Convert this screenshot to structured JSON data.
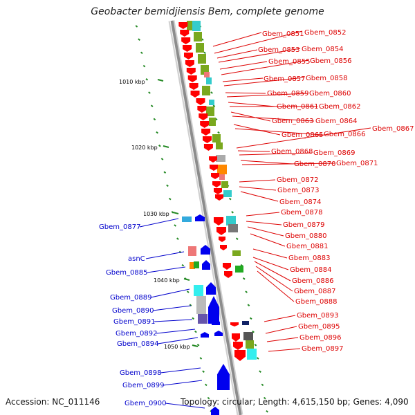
{
  "title": "Geobacter bemidjiensis Bem, complete genome",
  "footer": {
    "accession": "Accession: NC_011146",
    "topology": "Topology: circular; Length: 4,615,150 bp; Genes: 4,090"
  },
  "colors": {
    "forward_label": "#0000cc",
    "reverse_label": "#dd0000",
    "backbone": "#8c8c8c",
    "tick": "#228822"
  },
  "scale_labels": [
    "1010 kbp",
    "1020 kbp",
    "1030 kbp",
    "1040 kbp",
    "1050 kbp"
  ],
  "reverse_genes": [
    "Gbem_0851",
    "Gbem_0852",
    "Gbem_0853",
    "Gbem_0854",
    "Gbem_0855",
    "Gbem_0856",
    "Gbem_0857",
    "Gbem_0858",
    "Gbem_0859",
    "Gbem_0860",
    "Gbem_0861",
    "Gbem_0862",
    "Gbem_0863",
    "Gbem_0864",
    "Gbem_0865",
    "Gbem_0866",
    "Gbem_0867",
    "Gbem_0868",
    "Gbem_0869",
    "Gbem_0870",
    "Gbem_0871",
    "Gbem_0872",
    "Gbem_0873",
    "Gbem_0874",
    "Gbem_0878",
    "Gbem_0879",
    "Gbem_0880",
    "Gbem_0881",
    "Gbem_0883",
    "Gbem_0884",
    "Gbem_0886",
    "Gbem_0887",
    "Gbem_0888",
    "Gbem_0893",
    "Gbem_0895",
    "Gbem_0896",
    "Gbem_0897"
  ],
  "forward_genes": [
    "Gbem_0877",
    "asnC",
    "Gbem_0885",
    "Gbem_0889",
    "Gbem_0890",
    "Gbem_0891",
    "Gbem_0892",
    "Gbem_0894",
    "Gbem_0898",
    "Gbem_0899",
    "Gbem_0900"
  ]
}
